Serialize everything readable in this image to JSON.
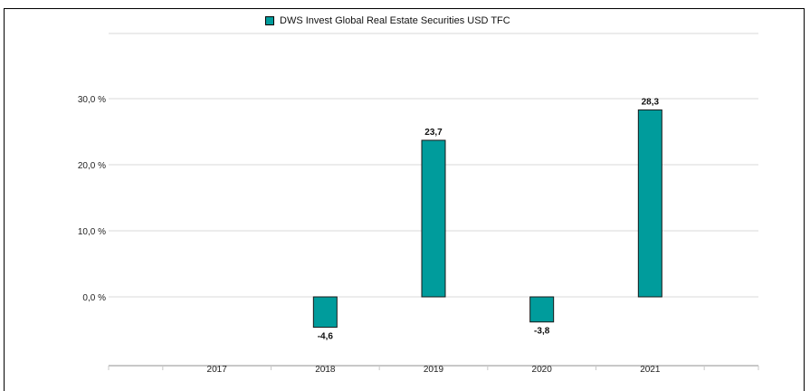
{
  "chart_data": {
    "type": "bar",
    "title": "",
    "xlabel": "",
    "ylabel": "",
    "categories": [
      "2017",
      "2018",
      "2019",
      "2020",
      "2021"
    ],
    "series": [
      {
        "name": "DWS Invest Global Real Estate Securities  USD TFC",
        "color": "#009c9c",
        "values": [
          null,
          -4.6,
          23.7,
          -3.8,
          28.3
        ],
        "value_labels": [
          "",
          "-4,6",
          "23,7",
          "-3,8",
          "28,3"
        ]
      }
    ],
    "yticks": [
      0,
      10,
      20,
      30
    ],
    "ytick_labels": [
      "0,0 %",
      "10,0 %",
      "20,0 %",
      "30,0 %"
    ],
    "ylim": [
      -10,
      40
    ],
    "grid": true,
    "legend_position": "top-center"
  }
}
